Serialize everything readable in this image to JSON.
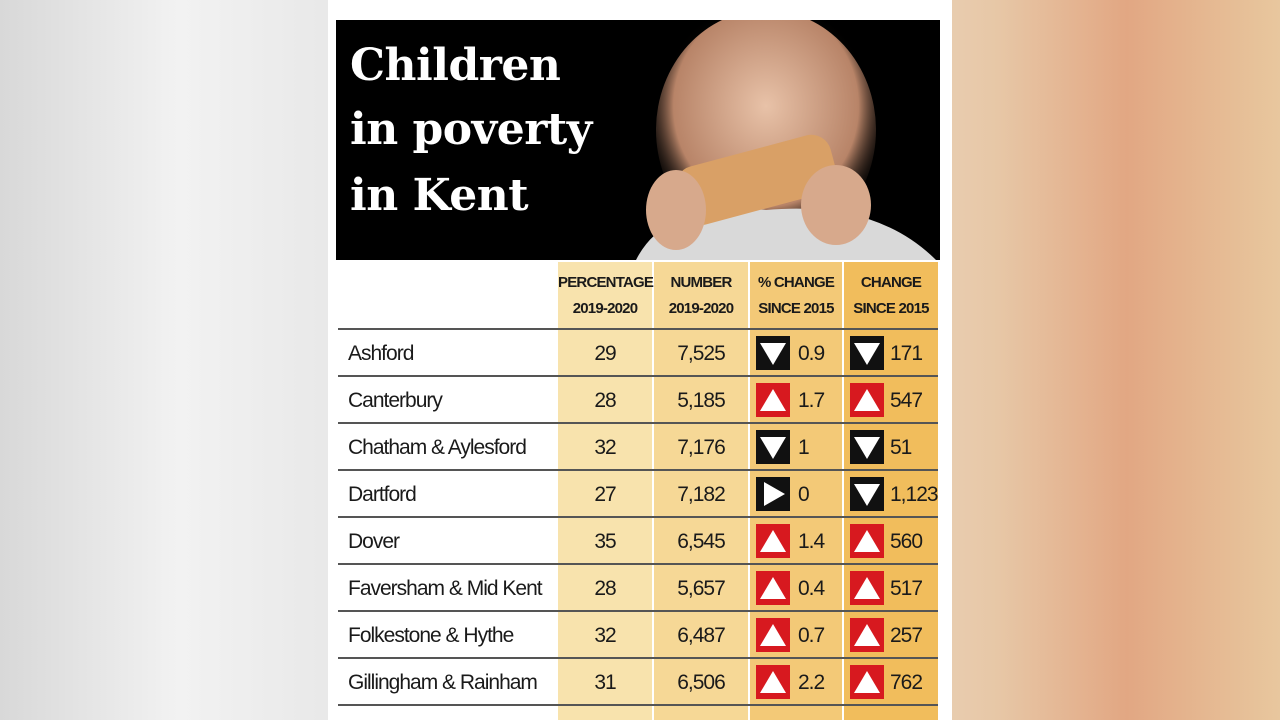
{
  "header": {
    "title_lines": [
      "Children",
      "in poverty",
      "in Kent"
    ]
  },
  "table": {
    "columns": [
      [
        "PERCENTAGE",
        "2019-2020"
      ],
      [
        "NUMBER",
        "2019-2020"
      ],
      [
        "% CHANGE",
        "SINCE 2015"
      ],
      [
        "CHANGE",
        "SINCE 2015"
      ]
    ],
    "rows": [
      [
        "Ashford",
        "29",
        "7,525",
        "0.9",
        "171"
      ],
      [
        "Canterbury",
        "28",
        "5,185",
        "1.7",
        "547"
      ],
      [
        "Chatham & Aylesford",
        "32",
        "7,176",
        "1",
        "51"
      ],
      [
        "Dartford",
        "27",
        "7,182",
        "0",
        "1,123"
      ],
      [
        "Dover",
        "35",
        "6,545",
        "1.4",
        "560"
      ],
      [
        "Faversham & Mid Kent",
        "28",
        "5,657",
        "0.4",
        "517"
      ],
      [
        "Folkestone & Hythe",
        "32",
        "6,487",
        "0.7",
        "257"
      ],
      [
        "Gillingham & Rainham",
        "31",
        "6,506",
        "2.2",
        "762"
      ]
    ]
  }
}
